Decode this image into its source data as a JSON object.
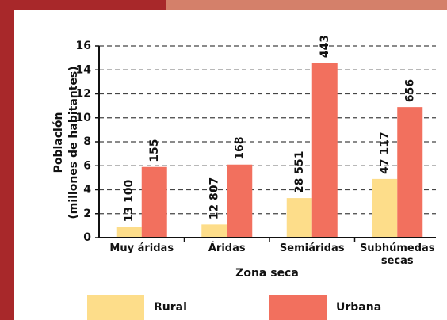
{
  "chart_data": {
    "type": "bar",
    "ylabel": "Población\n(millones de habitantes)",
    "xlabel": "Zona seca",
    "categories": [
      "Muy áridas",
      "Áridas",
      "Semiáridas",
      "Subhúmedas secas"
    ],
    "series": [
      {
        "name": "Rural",
        "color": "#fddd8a",
        "values": [
          0.9,
          1.1,
          3.3,
          4.9
        ],
        "bar_labels": [
          "13 100",
          "12 807",
          "28 551",
          "47 117"
        ]
      },
      {
        "name": "Urbana",
        "color": "#f2705e",
        "values": [
          5.9,
          6.1,
          14.6,
          10.9
        ],
        "bar_labels": [
          "155",
          "168",
          "443",
          "656"
        ]
      }
    ],
    "ylim": [
      0,
      16
    ],
    "yticks": [
      0,
      2,
      4,
      6,
      8,
      10,
      12,
      14,
      16
    ],
    "grid": true
  }
}
